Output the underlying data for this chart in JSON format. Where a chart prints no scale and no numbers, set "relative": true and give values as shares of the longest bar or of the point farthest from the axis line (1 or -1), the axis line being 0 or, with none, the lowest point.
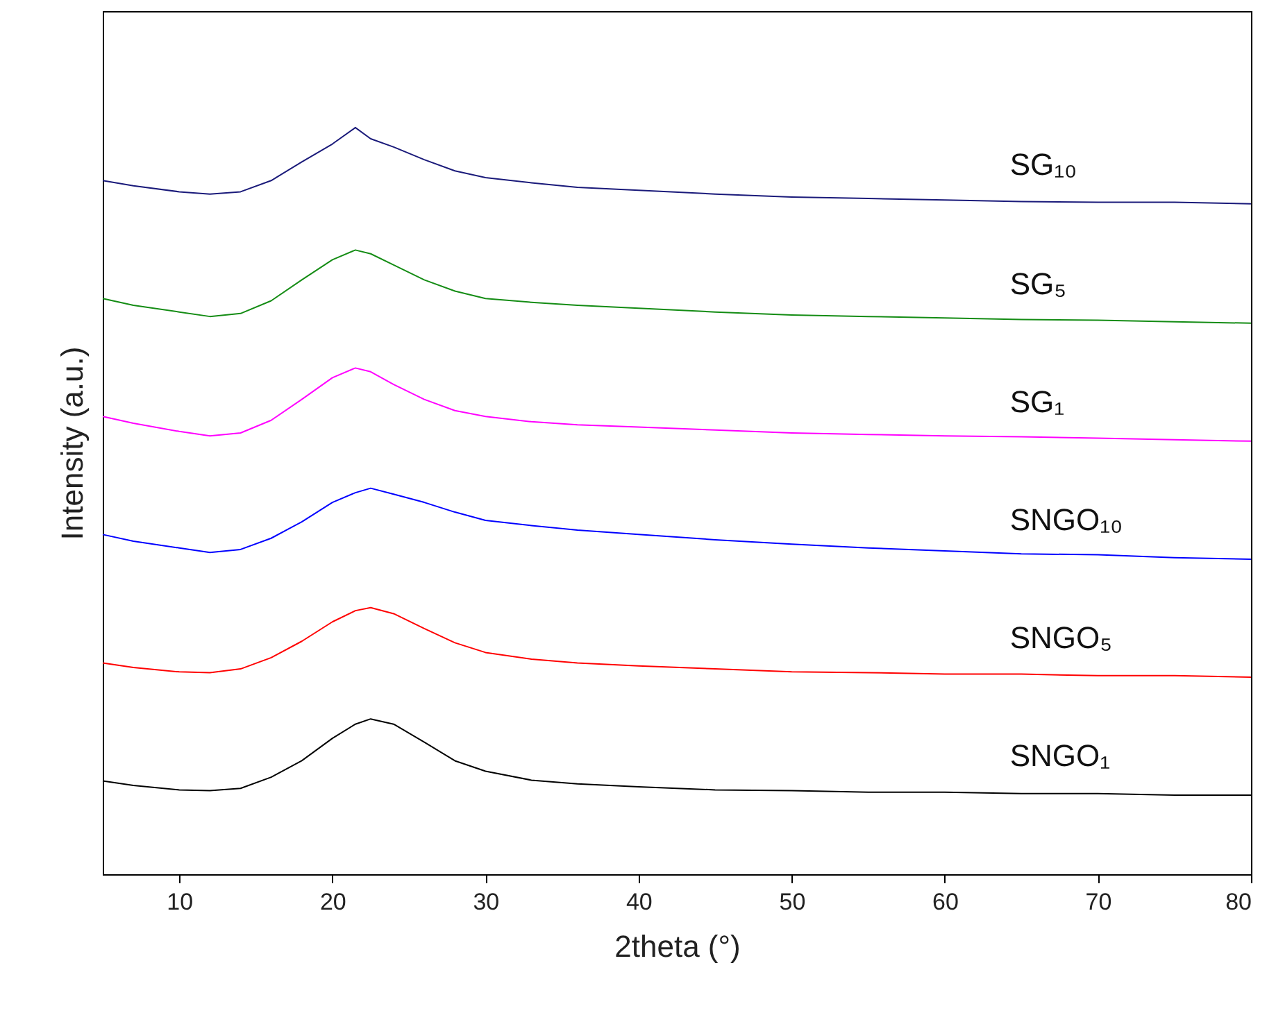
{
  "chart_data": {
    "type": "line",
    "relative": true,
    "xlabel": "2theta (°)",
    "ylabel": "Intensity (a.u.)",
    "xlim": [
      5,
      80
    ],
    "xticks": [
      10,
      20,
      30,
      40,
      50,
      60,
      70,
      80
    ],
    "grid": false,
    "x": [
      5,
      7,
      10,
      12,
      14,
      16,
      18,
      20,
      21.5,
      22.5,
      24,
      26,
      28,
      30,
      33,
      36,
      40,
      45,
      50,
      55,
      60,
      65,
      70,
      75,
      80
    ],
    "series": [
      {
        "name": "SG₁₀",
        "color": "#1a1a7a",
        "values": [
          0.929,
          0.922,
          0.914,
          0.911,
          0.914,
          0.929,
          0.954,
          0.978,
          1.0,
          0.985,
          0.974,
          0.957,
          0.942,
          0.933,
          0.926,
          0.92,
          0.916,
          0.911,
          0.907,
          0.905,
          0.903,
          0.901,
          0.9,
          0.9,
          0.898
        ]
      },
      {
        "name": "SG₅",
        "color": "#148c14",
        "values": [
          0.771,
          0.762,
          0.753,
          0.747,
          0.751,
          0.768,
          0.796,
          0.823,
          0.836,
          0.831,
          0.816,
          0.796,
          0.781,
          0.771,
          0.766,
          0.762,
          0.758,
          0.753,
          0.749,
          0.747,
          0.745,
          0.743,
          0.742,
          0.74,
          0.738
        ]
      },
      {
        "name": "SG₁",
        "color": "#ff00ff",
        "values": [
          0.613,
          0.604,
          0.593,
          0.587,
          0.591,
          0.608,
          0.636,
          0.665,
          0.678,
          0.673,
          0.656,
          0.636,
          0.621,
          0.613,
          0.606,
          0.602,
          0.599,
          0.595,
          0.591,
          0.589,
          0.587,
          0.586,
          0.584,
          0.582,
          0.58
        ]
      },
      {
        "name": "SNGO₁₀",
        "color": "#0000ff",
        "values": [
          0.455,
          0.446,
          0.437,
          0.431,
          0.435,
          0.45,
          0.472,
          0.498,
          0.511,
          0.517,
          0.509,
          0.498,
          0.485,
          0.474,
          0.467,
          0.461,
          0.455,
          0.448,
          0.442,
          0.437,
          0.433,
          0.429,
          0.428,
          0.424,
          0.422
        ]
      },
      {
        "name": "SNGO₅",
        "color": "#ff0000",
        "values": [
          0.283,
          0.277,
          0.271,
          0.27,
          0.275,
          0.29,
          0.312,
          0.338,
          0.353,
          0.357,
          0.349,
          0.329,
          0.31,
          0.297,
          0.288,
          0.283,
          0.279,
          0.275,
          0.271,
          0.27,
          0.268,
          0.268,
          0.266,
          0.266,
          0.264
        ]
      },
      {
        "name": "SNGO₁",
        "color": "#000000",
        "values": [
          0.125,
          0.119,
          0.113,
          0.112,
          0.115,
          0.13,
          0.152,
          0.182,
          0.201,
          0.208,
          0.201,
          0.177,
          0.152,
          0.138,
          0.126,
          0.121,
          0.117,
          0.113,
          0.112,
          0.11,
          0.11,
          0.108,
          0.108,
          0.106,
          0.106
        ]
      }
    ]
  }
}
